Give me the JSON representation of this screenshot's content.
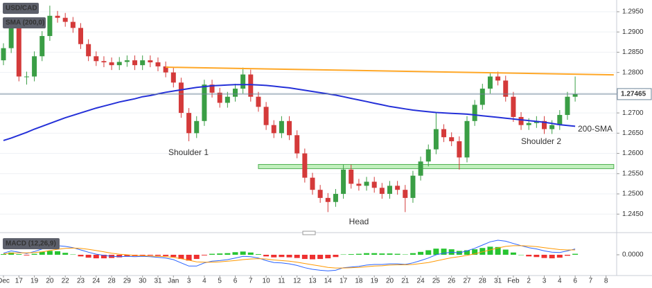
{
  "chart_data": [
    {
      "type": "candlestick",
      "title": "USD/CAD",
      "categories": [
        "Dec",
        null,
        "17",
        null,
        "19",
        null,
        "20",
        null,
        "22",
        null,
        "23",
        null,
        "24",
        null,
        "28",
        null,
        "29",
        null,
        "30",
        null,
        "31",
        null,
        "Jan",
        null,
        "3",
        null,
        "4",
        null,
        "5",
        null,
        "6",
        null,
        "7",
        null,
        "10",
        null,
        "11",
        null,
        "12",
        null,
        "13",
        null,
        "14",
        null,
        "17",
        null,
        "18",
        null,
        "19",
        null,
        "20",
        null,
        "21",
        null,
        "24",
        null,
        "25",
        null,
        "26",
        null,
        "27",
        null,
        "28",
        null,
        "31",
        null,
        "Feb",
        null,
        "2",
        null,
        "3",
        null,
        "4",
        null,
        "6",
        null,
        "7",
        null,
        "8",
        null
      ],
      "open": [
        1.283,
        1.286,
        1.2915,
        1.279,
        1.279,
        1.284,
        1.289,
        1.294,
        1.2935,
        1.2925,
        1.291,
        1.287,
        1.284,
        1.2828,
        1.2825,
        1.2818,
        1.2826,
        1.283,
        1.2818,
        1.283,
        1.2825,
        1.2815,
        1.28,
        1.2775,
        1.27,
        1.265,
        1.268,
        1.277,
        1.275,
        1.2725,
        1.274,
        1.276,
        1.2795,
        1.274,
        1.2715,
        1.267,
        1.265,
        1.268,
        1.2645,
        1.26,
        1.254,
        1.251,
        1.249,
        1.248,
        1.25,
        1.256,
        1.2525,
        1.252,
        1.253,
        1.2515,
        1.25,
        1.252,
        1.251,
        1.249,
        1.2545,
        1.258,
        1.261,
        1.266,
        1.264,
        1.263,
        1.259,
        1.268,
        1.272,
        1.276,
        1.279,
        1.278,
        1.274,
        1.269,
        1.267,
        1.2675,
        1.268,
        1.266,
        1.267,
        1.2695,
        1.274,
        null,
        null,
        null,
        null,
        null
      ],
      "high": [
        1.2872,
        1.2927,
        1.2927,
        1.2802,
        1.2852,
        1.2902,
        1.2965,
        1.2952,
        1.2947,
        1.2937,
        1.2922,
        1.2882,
        1.2852,
        1.284,
        1.2837,
        1.2838,
        1.2842,
        1.2842,
        1.2842,
        1.2842,
        1.2837,
        1.2827,
        1.2812,
        1.2787,
        1.2712,
        1.2692,
        1.2782,
        1.2782,
        1.2762,
        1.2752,
        1.2772,
        1.2812,
        1.2807,
        1.2752,
        1.2727,
        1.2682,
        1.2692,
        1.2692,
        1.2657,
        1.2612,
        1.2552,
        1.2522,
        1.2502,
        1.2512,
        1.2572,
        1.2572,
        1.2537,
        1.2542,
        1.2542,
        1.2527,
        1.2532,
        1.2532,
        1.2522,
        1.2557,
        1.2592,
        1.2622,
        1.27,
        1.2672,
        1.2652,
        1.2642,
        1.2692,
        1.2732,
        1.2772,
        1.28,
        1.2802,
        1.2792,
        1.2752,
        1.2702,
        1.2687,
        1.2692,
        1.2692,
        1.2682,
        1.2707,
        1.2752,
        1.279,
        null,
        null,
        null,
        null,
        null
      ],
      "low": [
        1.2818,
        1.2848,
        1.2778,
        1.277,
        1.2778,
        1.2828,
        1.2878,
        1.2923,
        1.2913,
        1.2898,
        1.2858,
        1.2828,
        1.2816,
        1.2813,
        1.2806,
        1.2806,
        1.2814,
        1.2806,
        1.2806,
        1.2813,
        1.2803,
        1.2788,
        1.2763,
        1.2688,
        1.263,
        1.2638,
        1.2668,
        1.2738,
        1.2713,
        1.2713,
        1.2728,
        1.2748,
        1.2728,
        1.2703,
        1.2658,
        1.2638,
        1.2638,
        1.2633,
        1.2588,
        1.2528,
        1.2498,
        1.2478,
        1.2455,
        1.2468,
        1.2488,
        1.2513,
        1.2508,
        1.2508,
        1.2503,
        1.2488,
        1.2488,
        1.2498,
        1.2455,
        1.2478,
        1.2533,
        1.2568,
        1.2598,
        1.2628,
        1.2618,
        1.256,
        1.2578,
        1.2668,
        1.2708,
        1.2748,
        1.2768,
        1.2728,
        1.2678,
        1.2658,
        1.2658,
        1.2663,
        1.2648,
        1.2648,
        1.2658,
        1.2683,
        1.2728,
        null,
        null,
        null,
        null,
        null
      ],
      "close": [
        1.286,
        1.2915,
        1.279,
        1.279,
        1.284,
        1.289,
        1.294,
        1.2935,
        1.2925,
        1.291,
        1.287,
        1.284,
        1.2828,
        1.2825,
        1.2818,
        1.2826,
        1.283,
        1.2818,
        1.283,
        1.2825,
        1.2815,
        1.28,
        1.2775,
        1.27,
        1.265,
        1.268,
        1.277,
        1.275,
        1.2725,
        1.274,
        1.276,
        1.2795,
        1.274,
        1.2715,
        1.267,
        1.265,
        1.268,
        1.2645,
        1.26,
        1.254,
        1.251,
        1.249,
        1.248,
        1.25,
        1.256,
        1.2525,
        1.252,
        1.253,
        1.2515,
        1.25,
        1.252,
        1.251,
        1.249,
        1.2545,
        1.258,
        1.261,
        1.266,
        1.264,
        1.263,
        1.259,
        1.268,
        1.272,
        1.276,
        1.279,
        1.278,
        1.274,
        1.269,
        1.267,
        1.2675,
        1.268,
        1.266,
        1.267,
        1.2695,
        1.274,
        1.27465,
        null,
        null,
        null,
        null,
        null
      ],
      "up_color": "#3a9e45",
      "down_color": "#d43a3a",
      "ylim": [
        1.2406,
        1.2979
      ],
      "yticks": [
        {
          "value": 1.245,
          "label": "1.2450"
        },
        {
          "value": 1.25,
          "label": "1.2500"
        },
        {
          "value": 1.255,
          "label": "1.2550"
        },
        {
          "value": 1.26,
          "label": "1.2600"
        },
        {
          "value": 1.265,
          "label": "1.2650"
        },
        {
          "value": 1.27,
          "label": "1.2700"
        },
        {
          "value": 1.275,
          "label": "1.2750"
        },
        {
          "value": 1.28,
          "label": "1.2800"
        },
        {
          "value": 1.285,
          "label": "1.2850"
        },
        {
          "value": 1.29,
          "label": "1.2900"
        },
        {
          "value": 1.295,
          "label": "1.2950"
        }
      ],
      "grid": true,
      "series": [
        {
          "name": "SMA (200,0)",
          "color": "#2430d8",
          "values": [
            1.2632,
            1.2638,
            1.2645,
            1.2652,
            1.266,
            1.2667,
            1.2674,
            1.2681,
            1.2688,
            1.2694,
            1.27,
            1.2706,
            1.2712,
            1.2717,
            1.2722,
            1.2727,
            1.2731,
            1.2735,
            1.274,
            1.2743,
            1.2747,
            1.2751,
            1.2754,
            1.2757,
            1.276,
            1.2763,
            1.2765,
            1.2767,
            1.2768,
            1.2769,
            1.277,
            1.277,
            1.277,
            1.2769,
            1.2768,
            1.2766,
            1.2764,
            1.2762,
            1.2759,
            1.2756,
            1.2753,
            1.275,
            1.2747,
            1.2744,
            1.274,
            1.2736,
            1.2732,
            1.2728,
            1.2724,
            1.272,
            1.2716,
            1.2713,
            1.271,
            1.2707,
            1.2705,
            1.2703,
            1.2701,
            1.27,
            1.2699,
            1.2698,
            1.2697,
            1.2695,
            1.2693,
            1.2691,
            1.2689,
            1.2687,
            1.2685,
            1.2683,
            1.2681,
            1.2679,
            1.2677,
            1.2674,
            1.2671,
            1.2669,
            1.2667,
            null,
            null,
            null,
            null,
            null
          ]
        }
      ],
      "trendline": {
        "color": "#ffa726",
        "values": [
          1.2813,
          1.2794
        ]
      },
      "zone": {
        "color": "#8fe388",
        "values": [
          1.2564,
          1.2571
        ]
      },
      "last_price": {
        "value": 1.27465,
        "label": "1.27465"
      },
      "annotations": [
        "Shoulder 1",
        "Head",
        "Shoulder 2",
        "200-SMA"
      ]
    },
    {
      "type": "macd",
      "title": "MACD (12,26,9)",
      "ylim": [
        -0.006,
        0.006
      ],
      "yticks": [
        {
          "value": 0,
          "label": "0.0000"
        }
      ],
      "histogram": {
        "up_color": "#27c431",
        "down_color": "#ee3030",
        "values": [
          0.0002,
          0.0007,
          0.0002,
          -0.0002,
          0.0003,
          0.0009,
          0.0012,
          0.0011,
          0.0006,
          0.0001,
          -0.0005,
          -0.0009,
          -0.0011,
          -0.0011,
          -0.001,
          -0.0008,
          -0.0005,
          -0.0004,
          -0.0002,
          -0.0002,
          -0.0003,
          -0.0004,
          -0.0007,
          -0.0013,
          -0.0018,
          -0.0013,
          -0.0002,
          0.0003,
          0.0004,
          0.0005,
          0.0008,
          0.001,
          0.0007,
          0.0002,
          -0.0005,
          -0.0008,
          -0.0007,
          -0.0008,
          -0.001,
          -0.0013,
          -0.0014,
          -0.0013,
          -0.0011,
          -0.0007,
          0.0001,
          0.0002,
          0.0003,
          0.0005,
          0.0005,
          0.0004,
          0.0004,
          0.0003,
          0.0001,
          0.0005,
          0.0009,
          0.0014,
          0.0019,
          0.0019,
          0.0017,
          0.0012,
          0.0014,
          0.0017,
          0.0021,
          0.0025,
          0.0024,
          0.0016,
          0.0007,
          0.0,
          -0.0005,
          -0.0007,
          -0.001,
          -0.0011,
          -0.0009,
          -0.0003,
          0.0003,
          null,
          null,
          null,
          null,
          null
        ]
      },
      "series": [
        {
          "color": "#2962ff",
          "values": [
            0.0005,
            0.0012,
            0.0008,
            0.0004,
            0.001,
            0.0018,
            0.0025,
            0.0028,
            0.0026,
            0.0022,
            0.0015,
            0.0008,
            0.0002,
            -0.0002,
            -0.0005,
            -0.0006,
            -0.0005,
            -0.0006,
            -0.0005,
            -0.0006,
            -0.0008,
            -0.001,
            -0.0015,
            -0.0025,
            -0.0035,
            -0.0035,
            -0.0025,
            -0.002,
            -0.0018,
            -0.0015,
            -0.001,
            -0.0005,
            -0.0006,
            -0.001,
            -0.0018,
            -0.0024,
            -0.0025,
            -0.0028,
            -0.0033,
            -0.004,
            -0.0045,
            -0.0048,
            -0.005,
            -0.0048,
            -0.004,
            -0.0038,
            -0.0036,
            -0.0032,
            -0.003,
            -0.003,
            -0.0028,
            -0.0028,
            -0.003,
            -0.0025,
            -0.0018,
            -0.001,
            0.0,
            0.0005,
            0.0008,
            0.0006,
            0.0012,
            0.002,
            0.003,
            0.004,
            0.0045,
            0.0042,
            0.0035,
            0.0028,
            0.0022,
            0.0018,
            0.0012,
            0.0008,
            0.0007,
            0.0012,
            0.0018,
            null,
            null,
            null,
            null,
            null
          ]
        },
        {
          "color": "#ff9800",
          "values": [
            0.0003,
            0.0005,
            0.0006,
            0.0006,
            0.0007,
            0.0009,
            0.0013,
            0.0017,
            0.002,
            0.0021,
            0.002,
            0.0017,
            0.0013,
            0.0009,
            0.0005,
            0.0002,
            0.0,
            -0.0002,
            -0.0003,
            -0.0004,
            -0.0005,
            -0.0006,
            -0.0008,
            -0.0012,
            -0.0017,
            -0.0022,
            -0.0023,
            -0.0023,
            -0.0022,
            -0.002,
            -0.0018,
            -0.0015,
            -0.0013,
            -0.0012,
            -0.0013,
            -0.0016,
            -0.0018,
            -0.002,
            -0.0023,
            -0.0027,
            -0.0031,
            -0.0035,
            -0.0039,
            -0.0041,
            -0.0041,
            -0.004,
            -0.0039,
            -0.0037,
            -0.0035,
            -0.0034,
            -0.0032,
            -0.0031,
            -0.0031,
            -0.003,
            -0.0027,
            -0.0024,
            -0.0019,
            -0.0014,
            -0.0009,
            -0.0006,
            -0.0002,
            0.0003,
            0.0009,
            0.0015,
            0.0021,
            0.0026,
            0.0028,
            0.0028,
            0.0027,
            0.0025,
            0.0022,
            0.0019,
            0.0016,
            0.0015,
            0.0015,
            null,
            null,
            null,
            null,
            null
          ]
        }
      ]
    }
  ]
}
